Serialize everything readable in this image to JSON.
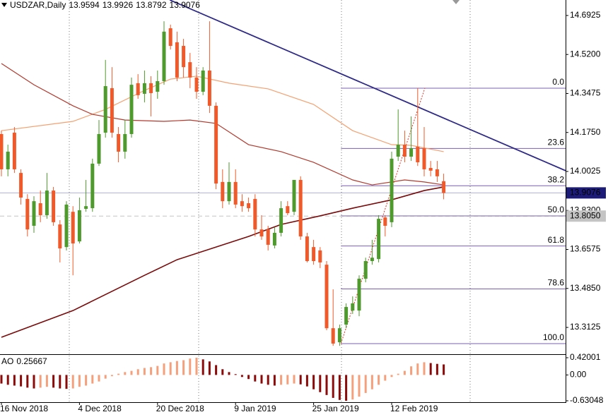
{
  "chart_data": {
    "type": "candlestick",
    "title": "USDZAR,Daily",
    "ohlc_header": [
      13.9594,
      13.9926,
      13.8792,
      13.9076
    ],
    "up_color": "#4e9a2c",
    "down_color": "#f05a2a",
    "xlim": [
      0,
      86.74
    ],
    "ylim": [
      13.194,
      14.761
    ],
    "yticks": [
      14.6925,
      {
        "value": 14.52,
        "label": "14.5200"
      },
      14.3475,
      {
        "value": 14.175,
        "label": "14.1750"
      },
      14.0025,
      {
        "value": 13.83,
        "label": "13.8300"
      },
      13.6575,
      {
        "value": 13.485,
        "label": "13.4850"
      },
      13.3125
    ],
    "xticks": [
      {
        "value": 0,
        "label": "16 Nov 2018"
      },
      {
        "value": 12,
        "label": "4 Dec 2018"
      },
      {
        "value": 24,
        "label": "20 Dec 2018"
      },
      {
        "value": 36,
        "label": "9 Jan 2019"
      },
      {
        "value": 48,
        "label": "25 Jan 2019"
      },
      {
        "value": 60,
        "label": "12 Feb 2019"
      }
    ],
    "open": [
      14.168,
      14.012,
      14.174,
      13.996,
      13.881,
      13.762,
      13.862,
      13.809,
      13.918,
      13.768,
      13.668,
      13.824,
      13.693,
      13.837,
      13.84,
      14.037,
      14.174,
      14.371,
      14.168,
      14.09,
      14.168,
      14.393,
      14.346,
      14.393,
      14.355,
      14.402,
      14.636,
      14.574,
      14.558,
      14.486,
      14.418,
      14.355,
      14.449,
      14.293,
      13.956,
      13.871,
      13.956,
      13.871,
      13.862,
      13.881,
      13.746,
      13.746,
      13.675,
      13.731,
      13.849,
      13.824,
      13.965,
      13.715,
      13.668,
      13.653,
      13.59,
      13.309,
      13.247,
      13.325,
      13.387,
      13.387,
      13.528,
      13.606,
      13.615,
      13.799,
      13.778,
      14.068,
      14.121,
      14.068,
      14.112,
      14.105,
      14.018,
      14.012,
      13.9594
    ],
    "high": [
      14.183,
      14.121,
      14.199,
      14.012,
      13.902,
      13.893,
      13.918,
      13.996,
      13.934,
      13.787,
      13.871,
      13.849,
      13.887,
      13.965,
      14.059,
      14.23,
      14.496,
      14.464,
      14.199,
      14.23,
      14.418,
      14.433,
      14.449,
      14.424,
      14.449,
      14.667,
      14.652,
      14.621,
      14.589,
      14.527,
      14.464,
      14.464,
      14.667,
      14.308,
      14.012,
      14.043,
      14.012,
      13.902,
      13.887,
      13.902,
      13.809,
      13.762,
      13.756,
      13.871,
      13.871,
      13.965,
      13.981,
      13.731,
      13.7,
      13.668,
      13.606,
      13.481,
      13.325,
      13.419,
      13.45,
      13.543,
      13.621,
      13.7,
      13.809,
      13.809,
      14.09,
      14.277,
      14.183,
      14.246,
      14.371,
      14.199,
      14.049,
      14.049,
      13.9926
    ],
    "low": [
      13.981,
      13.981,
      13.996,
      13.856,
      13.715,
      13.731,
      13.778,
      13.793,
      13.762,
      13.6,
      13.653,
      13.543,
      13.684,
      13.824,
      13.824,
      14.027,
      14.152,
      14.152,
      14.043,
      14.059,
      14.152,
      14.324,
      14.308,
      14.246,
      14.324,
      14.386,
      14.542,
      14.402,
      14.418,
      14.371,
      14.324,
      14.34,
      14.261,
      13.924,
      13.84,
      13.856,
      13.84,
      13.824,
      13.824,
      13.715,
      13.7,
      13.653,
      13.662,
      13.715,
      13.809,
      13.809,
      13.7,
      13.6,
      13.59,
      13.575,
      13.3,
      13.231,
      13.231,
      13.309,
      13.372,
      13.362,
      13.512,
      13.59,
      13.6,
      13.715,
      13.756,
      14.049,
      14.043,
      14.049,
      14.027,
      13.981,
      13.981,
      13.956,
      13.8792
    ],
    "close": [
      14.012,
      14.09,
      14.012,
      13.887,
      13.746,
      13.871,
      13.809,
      13.918,
      13.778,
      13.662,
      13.856,
      13.684,
      13.831,
      13.849,
      14.037,
      14.168,
      14.38,
      14.174,
      14.09,
      14.168,
      14.386,
      14.34,
      14.393,
      14.349,
      14.402,
      14.621,
      14.558,
      14.418,
      14.464,
      14.418,
      14.355,
      14.449,
      14.293,
      13.949,
      13.871,
      13.956,
      13.856,
      13.849,
      13.84,
      13.746,
      13.715,
      13.678,
      13.731,
      13.84,
      13.818,
      13.965,
      13.715,
      13.606,
      13.606,
      13.6,
      13.309,
      13.241,
      13.309,
      13.403,
      13.419,
      13.528,
      13.606,
      13.621,
      13.793,
      13.762,
      14.059,
      14.121,
      14.068,
      14.105,
      14.043,
      14.012,
      14.006,
      13.981,
      13.9076
    ],
    "lines": [
      {
        "color": "#f4a070",
        "x": [
          0,
          11,
          16,
          22,
          26,
          30,
          35,
          41,
          48,
          54,
          60,
          63,
          68
        ],
        "values": [
          14.183,
          14.224,
          14.277,
          14.361,
          14.411,
          14.424,
          14.393,
          14.368,
          14.299,
          14.183,
          14.121,
          14.118,
          14.09
        ]
      },
      {
        "color": "#b03a2e",
        "x": [
          0,
          5,
          11,
          14,
          19,
          25,
          29,
          33,
          38,
          43,
          48,
          54,
          57,
          62,
          65,
          68
        ],
        "values": [
          14.48,
          14.386,
          14.293,
          14.255,
          14.23,
          14.224,
          14.23,
          14.215,
          14.121,
          14.09,
          14.043,
          13.965,
          13.943,
          13.965,
          13.956,
          13.943
        ]
      },
      {
        "color": "#7a0a0a",
        "x": [
          0,
          11,
          22,
          27,
          33,
          38,
          43,
          49,
          54,
          60,
          65,
          68
        ],
        "values": [
          13.269,
          13.387,
          13.543,
          13.612,
          13.668,
          13.715,
          13.768,
          13.806,
          13.84,
          13.877,
          13.918,
          13.934
        ]
      }
    ],
    "trendline": {
      "color": "#2e2a86",
      "x": [
        25.9,
        86.74
      ],
      "values": [
        14.761,
        14.006
      ]
    },
    "fibo": {
      "color": "#7a5fb0",
      "diagonal_color": "#e03020",
      "x": [
        52.2,
        65.1
      ],
      "values": [
        13.241,
        14.371
      ],
      "levels": [
        {
          "value": 0,
          "label": "0.0"
        },
        23.6,
        38.2,
        {
          "value": 50,
          "label": "50.0"
        },
        61.8,
        78.6,
        {
          "value": 100,
          "label": "100.0"
        }
      ]
    },
    "price_lines": [
      {
        "value": 13.9076,
        "color": "#1c1c78",
        "text_color": "#ffffff",
        "style": "solid"
      },
      {
        "value": 13.805,
        "label": "13.8050",
        "color": "#c4c4c4",
        "text_color": "#000000",
        "style": "dashed"
      }
    ],
    "indicator": {
      "type": "bar",
      "name": "AO",
      "current": 0.25667,
      "up_color": "#f4a07c",
      "down_color": "#8b0a0a",
      "ylim": [
        -0.63048,
        0.42001
      ],
      "yticks": [
        0.42001,
        {
          "value": 0,
          "label": "0.00"
        },
        -0.63048
      ],
      "values": [
        -0.21,
        -0.24,
        -0.26,
        -0.28,
        -0.31,
        -0.33,
        -0.31,
        -0.29,
        -0.31,
        -0.33,
        -0.34,
        -0.33,
        -0.29,
        -0.26,
        -0.21,
        -0.16,
        -0.09,
        -0.03,
        0.03,
        0.07,
        0.1,
        0.14,
        0.17,
        0.19,
        0.22,
        0.28,
        0.31,
        0.34,
        0.36,
        0.4,
        0.42,
        0.38,
        0.33,
        0.24,
        0.14,
        0.07,
        0.02,
        -0.05,
        -0.1,
        -0.16,
        -0.21,
        -0.24,
        -0.26,
        -0.24,
        -0.23,
        -0.21,
        -0.23,
        -0.28,
        -0.35,
        -0.42,
        -0.49,
        -0.56,
        -0.61,
        -0.63,
        -0.6,
        -0.53,
        -0.44,
        -0.35,
        -0.24,
        -0.14,
        -0.05,
        0.03,
        0.1,
        0.21,
        0.28,
        0.31,
        0.29,
        0.27,
        0.25667
      ]
    }
  }
}
